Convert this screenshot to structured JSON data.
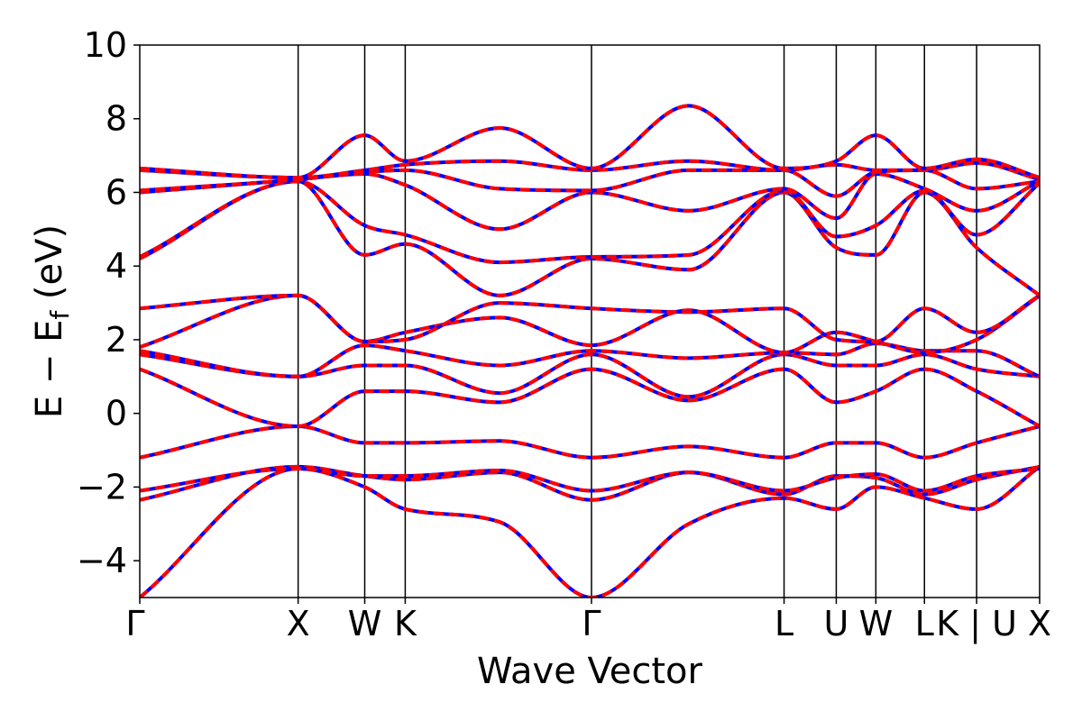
{
  "chart_data": {
    "type": "line",
    "title": "",
    "xlabel": "Wave Vector",
    "ylabel": "E − E_f (eV)",
    "ylabel_main": "E − E",
    "ylabel_sub": "f",
    "ylabel_unit": " (eV)",
    "ylim": [
      -5,
      10
    ],
    "xlim": [
      0,
      1
    ],
    "yticks": [
      -4,
      -2,
      0,
      2,
      4,
      6,
      8,
      10
    ],
    "ytick_labels": [
      "−4",
      "−2",
      "0",
      "2",
      "4",
      "6",
      "8",
      "10"
    ],
    "kpoints": [
      {
        "x": 0.0,
        "label": "Γ"
      },
      {
        "x": 0.176,
        "label": "X"
      },
      {
        "x": 0.25,
        "label": "W"
      },
      {
        "x": 0.295,
        "label": "K"
      },
      {
        "x": 0.502,
        "label": "Γ"
      },
      {
        "x": 0.716,
        "label": "L"
      },
      {
        "x": 0.774,
        "label": "U"
      },
      {
        "x": 0.818,
        "label": "W"
      },
      {
        "x": 0.872,
        "label": "L"
      },
      {
        "x": 0.93,
        "label": "K | U"
      },
      {
        "x": 1.0,
        "label": "X"
      }
    ],
    "series_styles": [
      {
        "color": "#0000ff",
        "dash": "solid"
      },
      {
        "color": "#ff0000",
        "dash": "dashed"
      }
    ],
    "bands": [
      {
        "x": [
          0,
          0.176,
          0.25,
          0.295,
          0.4,
          0.502,
          0.61,
          0.716,
          0.774,
          0.818,
          0.872,
          0.93,
          1.0
        ],
        "y": [
          -5.0,
          -1.5,
          -2.0,
          -2.6,
          -2.95,
          -5.0,
          -3.0,
          -2.3,
          -2.6,
          -2.0,
          -2.3,
          -2.6,
          -1.45
        ]
      },
      {
        "x": [
          0,
          0.176,
          0.25,
          0.295,
          0.4,
          0.502,
          0.61,
          0.716,
          0.774,
          0.818,
          0.872,
          0.93,
          1.0
        ],
        "y": [
          -2.35,
          -1.45,
          -1.7,
          -1.8,
          -1.6,
          -2.35,
          -1.6,
          -2.2,
          -1.7,
          -1.75,
          -2.2,
          -1.8,
          -1.45
        ]
      },
      {
        "x": [
          0,
          0.176,
          0.25,
          0.295,
          0.4,
          0.502,
          0.61,
          0.716,
          0.774,
          0.818,
          0.872,
          0.93,
          1.0
        ],
        "y": [
          -2.1,
          -1.5,
          -1.7,
          -1.7,
          -1.55,
          -2.1,
          -1.6,
          -2.1,
          -1.75,
          -1.65,
          -2.1,
          -1.7,
          -1.5
        ]
      },
      {
        "x": [
          0,
          0.176,
          0.25,
          0.295,
          0.4,
          0.502,
          0.61,
          0.716,
          0.774,
          0.818,
          0.872,
          0.93,
          1.0
        ],
        "y": [
          -1.2,
          -0.35,
          -0.8,
          -0.8,
          -0.75,
          -1.2,
          -0.9,
          -1.2,
          -0.8,
          -0.8,
          -1.2,
          -0.8,
          -0.35
        ]
      },
      {
        "x": [
          0,
          0.176,
          0.25,
          0.295,
          0.4,
          0.502,
          0.61,
          0.716,
          0.774,
          0.818,
          0.872,
          0.93,
          1.0
        ],
        "y": [
          1.2,
          -0.35,
          0.6,
          0.6,
          0.3,
          1.2,
          0.35,
          1.2,
          0.3,
          0.6,
          1.2,
          0.6,
          -0.35
        ]
      },
      {
        "x": [
          0,
          0.176,
          0.25,
          0.295,
          0.4,
          0.502,
          0.61,
          0.716,
          0.774,
          0.818,
          0.872,
          0.93,
          1.0
        ],
        "y": [
          1.6,
          1.0,
          1.3,
          1.3,
          0.55,
          1.6,
          0.45,
          1.6,
          1.3,
          1.3,
          1.6,
          1.2,
          1.0
        ]
      },
      {
        "x": [
          0,
          0.176,
          0.25,
          0.295,
          0.4,
          0.502,
          0.61,
          0.716,
          0.774,
          0.818,
          0.872,
          0.93,
          1.0
        ],
        "y": [
          1.7,
          1.0,
          1.85,
          1.7,
          1.3,
          1.7,
          1.5,
          1.65,
          1.6,
          1.9,
          1.7,
          1.7,
          1.0
        ]
      },
      {
        "x": [
          0,
          0.176,
          0.25,
          0.295,
          0.4,
          0.502,
          0.61,
          0.716,
          0.774,
          0.818,
          0.872,
          0.93,
          1.0
        ],
        "y": [
          1.8,
          3.2,
          1.95,
          2.2,
          2.6,
          1.85,
          2.8,
          1.65,
          2.2,
          1.95,
          1.65,
          2.0,
          3.2
        ]
      },
      {
        "x": [
          0,
          0.176,
          0.25,
          0.295,
          0.4,
          0.502,
          0.61,
          0.716,
          0.774,
          0.818,
          0.872,
          0.93,
          1.0
        ],
        "y": [
          2.85,
          3.2,
          1.95,
          2.0,
          3.0,
          2.85,
          2.75,
          2.85,
          2.0,
          1.95,
          2.85,
          2.2,
          3.2
        ]
      },
      {
        "x": [
          0,
          0.176,
          0.25,
          0.295,
          0.4,
          0.502,
          0.61,
          0.716,
          0.774,
          0.818,
          0.872,
          0.93,
          1.0
        ],
        "y": [
          4.2,
          6.3,
          4.3,
          4.6,
          3.2,
          4.2,
          3.9,
          6.0,
          4.5,
          4.3,
          6.0,
          4.5,
          3.2
        ]
      },
      {
        "x": [
          0,
          0.176,
          0.25,
          0.295,
          0.4,
          0.502,
          0.61,
          0.716,
          0.774,
          0.818,
          0.872,
          0.93,
          1.0
        ],
        "y": [
          4.25,
          6.3,
          5.1,
          4.85,
          4.1,
          4.25,
          4.3,
          6.05,
          4.8,
          5.1,
          6.05,
          4.85,
          6.25
        ]
      },
      {
        "x": [
          0,
          0.176,
          0.25,
          0.295,
          0.4,
          0.502,
          0.61,
          0.716,
          0.774,
          0.818,
          0.872,
          0.93,
          1.0
        ],
        "y": [
          6.0,
          6.35,
          6.5,
          6.2,
          5.0,
          6.0,
          5.5,
          6.1,
          5.3,
          6.5,
          6.1,
          5.5,
          6.3
        ]
      },
      {
        "x": [
          0,
          0.176,
          0.25,
          0.295,
          0.4,
          0.502,
          0.61,
          0.716,
          0.774,
          0.818,
          0.872,
          0.93,
          1.0
        ],
        "y": [
          6.05,
          6.35,
          6.55,
          6.6,
          6.1,
          6.05,
          6.6,
          6.6,
          5.9,
          6.55,
          6.6,
          6.1,
          6.3
        ]
      },
      {
        "x": [
          0,
          0.176,
          0.25,
          0.295,
          0.4,
          0.502,
          0.61,
          0.716,
          0.774,
          0.818,
          0.872,
          0.93,
          1.0
        ],
        "y": [
          6.6,
          6.4,
          6.6,
          6.75,
          6.85,
          6.6,
          6.85,
          6.6,
          6.75,
          6.6,
          6.6,
          6.8,
          6.35
        ]
      },
      {
        "x": [
          0,
          0.176,
          0.25,
          0.295,
          0.4,
          0.502,
          0.61,
          0.716,
          0.774,
          0.818,
          0.872,
          0.93,
          1.0
        ],
        "y": [
          6.65,
          6.4,
          7.55,
          6.85,
          7.75,
          6.65,
          8.35,
          6.65,
          6.85,
          7.55,
          6.65,
          6.9,
          6.4
        ]
      }
    ]
  }
}
